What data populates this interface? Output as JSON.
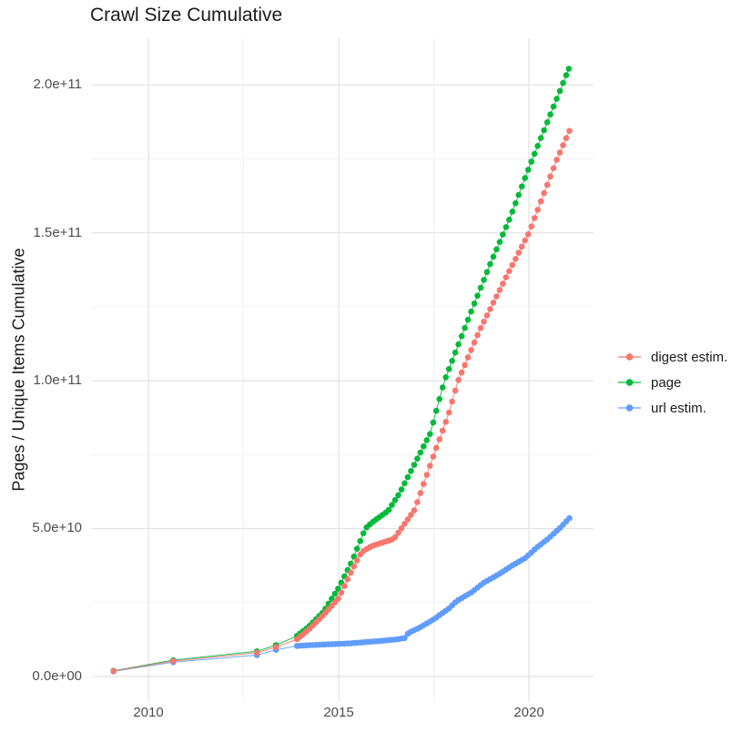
{
  "chart_data": {
    "type": "scatter",
    "title": "Crawl Size Cumulative",
    "xlabel": "",
    "ylabel": "Pages / Unique Items Cumulative",
    "value_unit": "items (values stored as multiples of 1e9)",
    "x_range": [
      2008.5,
      2021.7
    ],
    "y_range_e9": [
      -8.5,
      215.8
    ],
    "x_ticks": [
      {
        "label": "2010",
        "year": 2010
      },
      {
        "label": "2015",
        "year": 2015
      },
      {
        "label": "2020",
        "year": 2020
      }
    ],
    "y_ticks": [
      {
        "label": "0.0e+00",
        "value_e9": 0
      },
      {
        "label": "5.0e+10",
        "value_e9": 50
      },
      {
        "label": "1.0e+11",
        "value_e9": 100
      },
      {
        "label": "1.5e+11",
        "value_e9": 150
      },
      {
        "label": "2.0e+11",
        "value_e9": 200
      }
    ],
    "grid": {
      "major_color": "#e3e3e3",
      "minor_color": "#f1f1f1",
      "x_major": [
        2010,
        2015,
        2020
      ],
      "x_minor": [
        2012.5,
        2017.5
      ],
      "y_major_e9": [
        0,
        50,
        100,
        150,
        200
      ],
      "y_minor_e9": [
        25,
        75,
        125,
        175
      ]
    },
    "legend": {
      "position": "right"
    },
    "series": [
      {
        "name": "digest estim.",
        "color": "#F8766D",
        "dense_from_year": 2013.9,
        "dense_step_years": 0.0833,
        "anchors_e9": [
          [
            2009.08,
            1.8
          ],
          [
            2010.65,
            5.2
          ],
          [
            2012.85,
            8.0
          ],
          [
            2013.35,
            9.9
          ],
          [
            2013.9,
            12.6
          ],
          [
            2014.2,
            15.7
          ],
          [
            2014.6,
            20.8
          ],
          [
            2015.0,
            26.5
          ],
          [
            2015.35,
            36
          ],
          [
            2015.6,
            42
          ],
          [
            2015.85,
            44
          ],
          [
            2016.45,
            46.5
          ],
          [
            2016.7,
            51
          ],
          [
            2017.0,
            56.5
          ],
          [
            2017.5,
            75
          ],
          [
            2017.87,
            88
          ],
          [
            2018.14,
            100
          ],
          [
            2018.7,
            117
          ],
          [
            2019.4,
            135
          ],
          [
            2020.0,
            150
          ],
          [
            2020.74,
            175
          ],
          [
            2021.1,
            185.5
          ]
        ]
      },
      {
        "name": "page",
        "color": "#00BA38",
        "dense_from_year": 2013.9,
        "dense_step_years": 0.0833,
        "anchors_e9": [
          [
            2009.08,
            1.9
          ],
          [
            2010.65,
            5.5
          ],
          [
            2012.85,
            8.5
          ],
          [
            2013.35,
            10.6
          ],
          [
            2013.9,
            13.7
          ],
          [
            2014.2,
            16.7
          ],
          [
            2014.6,
            21.9
          ],
          [
            2015.0,
            30
          ],
          [
            2015.35,
            39
          ],
          [
            2015.7,
            50
          ],
          [
            2015.85,
            51.8
          ],
          [
            2016.3,
            56
          ],
          [
            2016.6,
            62
          ],
          [
            2017.0,
            72
          ],
          [
            2017.4,
            82
          ],
          [
            2017.78,
            100
          ],
          [
            2018.5,
            124
          ],
          [
            2019.0,
            140
          ],
          [
            2019.5,
            155
          ],
          [
            2020.0,
            172
          ],
          [
            2020.5,
            188
          ],
          [
            2021.05,
            205.5
          ]
        ]
      },
      {
        "name": "url estim.",
        "color": "#619CFF",
        "dense_from_year": 2013.9,
        "dense_step_years": 0.0833,
        "anchors_e9": [
          [
            2009.08,
            1.7
          ],
          [
            2010.65,
            4.8
          ],
          [
            2012.85,
            7.2
          ],
          [
            2013.35,
            9.0
          ],
          [
            2013.9,
            10.3
          ],
          [
            2014.3,
            10.6
          ],
          [
            2014.8,
            10.9
          ],
          [
            2015.2,
            11.1
          ],
          [
            2015.7,
            11.6
          ],
          [
            2016.1,
            12.0
          ],
          [
            2016.5,
            12.5
          ],
          [
            2016.75,
            13.0
          ],
          [
            2016.83,
            14.7
          ],
          [
            2017.1,
            16.3
          ],
          [
            2017.5,
            19.3
          ],
          [
            2017.9,
            23.0
          ],
          [
            2018.1,
            25.5
          ],
          [
            2018.5,
            28.5
          ],
          [
            2018.8,
            31.6
          ],
          [
            2019.2,
            34.5
          ],
          [
            2019.6,
            37.8
          ],
          [
            2019.9,
            40.0
          ],
          [
            2020.2,
            43.5
          ],
          [
            2020.5,
            46.5
          ],
          [
            2020.8,
            50.0
          ],
          [
            2021.1,
            54.0
          ]
        ]
      }
    ]
  }
}
